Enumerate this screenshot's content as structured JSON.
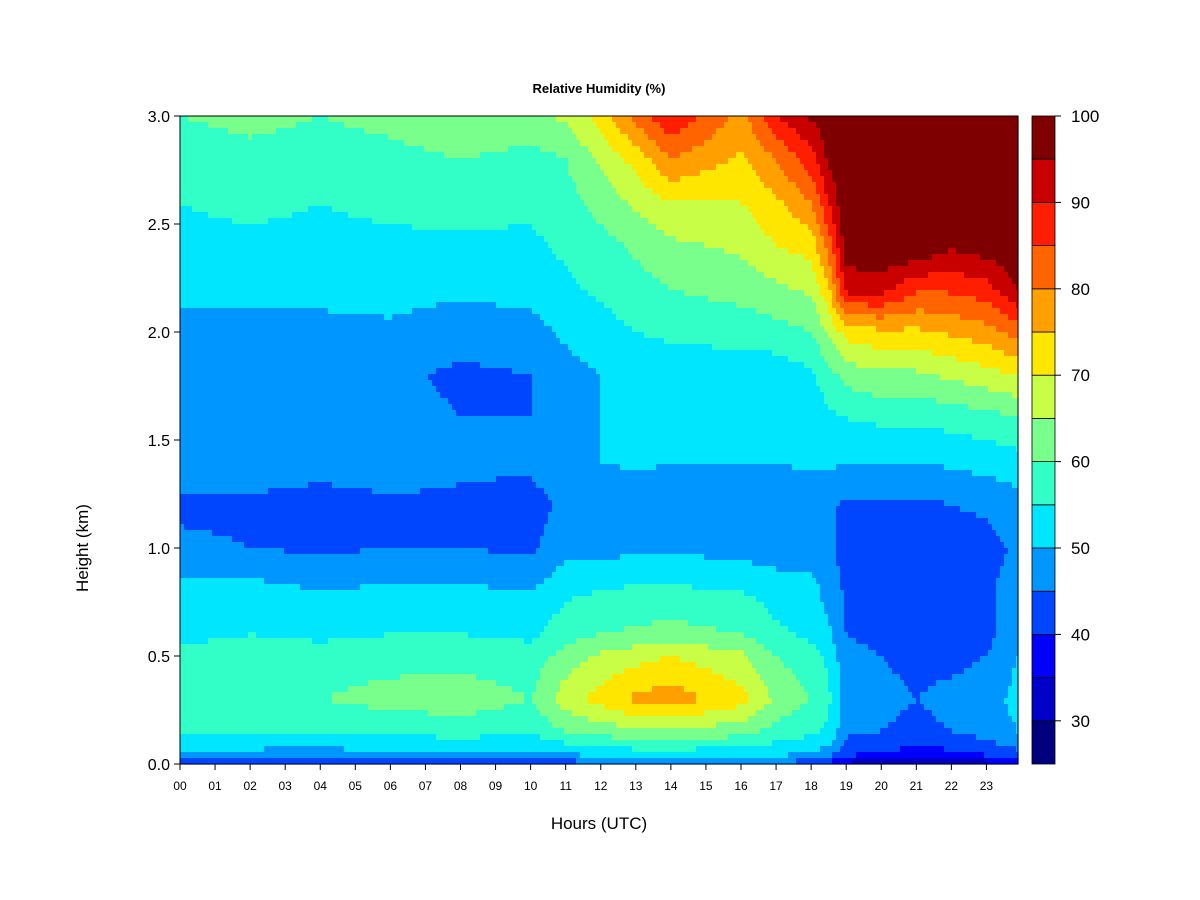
{
  "chart_data": {
    "type": "heatmap",
    "title": "Relative Humidity (%)",
    "xlabel": "Hours (UTC)",
    "ylabel": "Height (km)",
    "xlim": [
      0,
      23.9
    ],
    "ylim": [
      0.0,
      3.0
    ],
    "x_ticks": [
      "00",
      "01",
      "02",
      "03",
      "04",
      "05",
      "06",
      "07",
      "08",
      "09",
      "10",
      "11",
      "12",
      "13",
      "14",
      "15",
      "16",
      "17",
      "18",
      "19",
      "20",
      "21",
      "22",
      "23"
    ],
    "y_ticks": [
      "0.0",
      "0.5",
      "1.0",
      "1.5",
      "2.0",
      "2.5",
      "3.0"
    ],
    "colorbar": {
      "levels": [
        25,
        30,
        35,
        40,
        45,
        50,
        55,
        60,
        65,
        70,
        75,
        80,
        85,
        90,
        95,
        100
      ],
      "colors": [
        "#00007f",
        "#0000c8",
        "#0000ff",
        "#0046ff",
        "#0096ff",
        "#00e6ff",
        "#32ffc8",
        "#78ff8c",
        "#c8ff46",
        "#ffe600",
        "#ffa000",
        "#ff6400",
        "#ff1e00",
        "#c80000",
        "#7f0000"
      ],
      "tick_labels": [
        "30",
        "40",
        "50",
        "60",
        "70",
        "80",
        "90",
        "100"
      ]
    },
    "grid_hours": [
      0,
      2,
      4,
      6,
      8,
      10,
      11,
      12,
      13,
      14,
      16,
      17,
      18,
      18.5,
      19,
      20,
      21,
      22,
      23,
      23.9
    ],
    "grid_heights_km": [
      0.0,
      0.05,
      0.15,
      0.3,
      0.5,
      0.6,
      0.8,
      1.0,
      1.2,
      1.4,
      1.6,
      1.8,
      2.0,
      2.2,
      2.4,
      2.6,
      2.8,
      3.0
    ],
    "rh_profiles": [
      [
        42,
        50,
        55,
        58,
        56,
        54,
        52,
        46,
        44,
        48,
        47,
        46,
        48,
        52,
        54,
        55,
        56,
        60
      ],
      [
        40,
        49,
        55,
        59,
        57,
        55,
        52,
        45,
        44,
        48,
        46,
        45,
        48,
        52,
        54,
        56,
        58,
        62
      ],
      [
        40,
        48,
        55,
        60,
        57,
        54,
        50,
        44,
        43,
        47,
        46,
        45,
        48,
        52,
        54,
        55,
        57,
        60
      ],
      [
        42,
        50,
        56,
        62,
        58,
        55,
        51,
        45,
        44,
        48,
        47,
        46,
        49,
        52,
        54,
        56,
        58,
        62
      ],
      [
        42,
        50,
        57,
        63,
        58,
        55,
        51,
        45,
        44,
        46,
        45,
        44,
        47,
        51,
        54,
        57,
        60,
        65
      ],
      [
        42,
        49,
        56,
        60,
        57,
        54,
        50,
        44,
        43,
        46,
        45,
        45,
        48,
        52,
        54,
        56,
        58,
        64
      ],
      [
        42,
        51,
        60,
        68,
        62,
        58,
        54,
        48,
        46,
        49,
        48,
        48,
        51,
        54,
        56,
        58,
        60,
        66
      ],
      [
        44,
        52,
        62,
        72,
        66,
        60,
        55,
        48,
        46,
        50,
        50,
        50,
        53,
        56,
        58,
        62,
        66,
        72
      ],
      [
        45,
        53,
        64,
        76,
        68,
        61,
        56,
        49,
        47,
        51,
        51,
        52,
        55,
        58,
        61,
        66,
        72,
        82
      ],
      [
        45,
        53,
        64,
        78,
        70,
        62,
        56,
        49,
        47,
        50,
        51,
        52,
        56,
        60,
        64,
        70,
        80,
        90
      ],
      [
        45,
        53,
        62,
        72,
        66,
        60,
        55,
        48,
        46,
        50,
        51,
        52,
        57,
        62,
        66,
        70,
        74,
        78
      ],
      [
        44,
        52,
        58,
        64,
        60,
        56,
        53,
        47,
        46,
        50,
        51,
        52,
        58,
        64,
        70,
        74,
        80,
        90
      ],
      [
        42,
        50,
        56,
        60,
        57,
        54,
        52,
        48,
        47,
        51,
        52,
        54,
        60,
        66,
        72,
        80,
        88,
        96
      ],
      [
        38,
        48,
        54,
        56,
        54,
        51,
        48,
        46,
        46,
        51,
        54,
        58,
        66,
        74,
        82,
        90,
        96,
        98
      ],
      [
        33,
        42,
        46,
        47,
        46,
        45,
        44,
        43,
        44,
        50,
        55,
        62,
        72,
        92,
        98,
        100,
        100,
        100
      ],
      [
        30,
        40,
        45,
        46,
        45,
        44,
        43,
        43,
        44,
        50,
        56,
        64,
        74,
        92,
        100,
        100,
        100,
        100
      ],
      [
        28,
        38,
        44,
        45,
        44,
        44,
        43,
        42,
        44,
        50,
        56,
        64,
        74,
        86,
        100,
        100,
        100,
        100
      ],
      [
        29,
        39,
        45,
        46,
        44,
        44,
        44,
        42,
        45,
        51,
        57,
        66,
        76,
        86,
        96,
        100,
        100,
        100
      ],
      [
        32,
        42,
        47,
        47,
        45,
        43,
        44,
        43,
        46,
        52,
        58,
        68,
        78,
        88,
        98,
        100,
        100,
        100
      ],
      [
        36,
        44,
        50,
        52,
        50,
        50,
        48,
        46,
        48,
        53,
        60,
        70,
        82,
        95,
        100,
        100,
        100,
        100
      ]
    ]
  }
}
